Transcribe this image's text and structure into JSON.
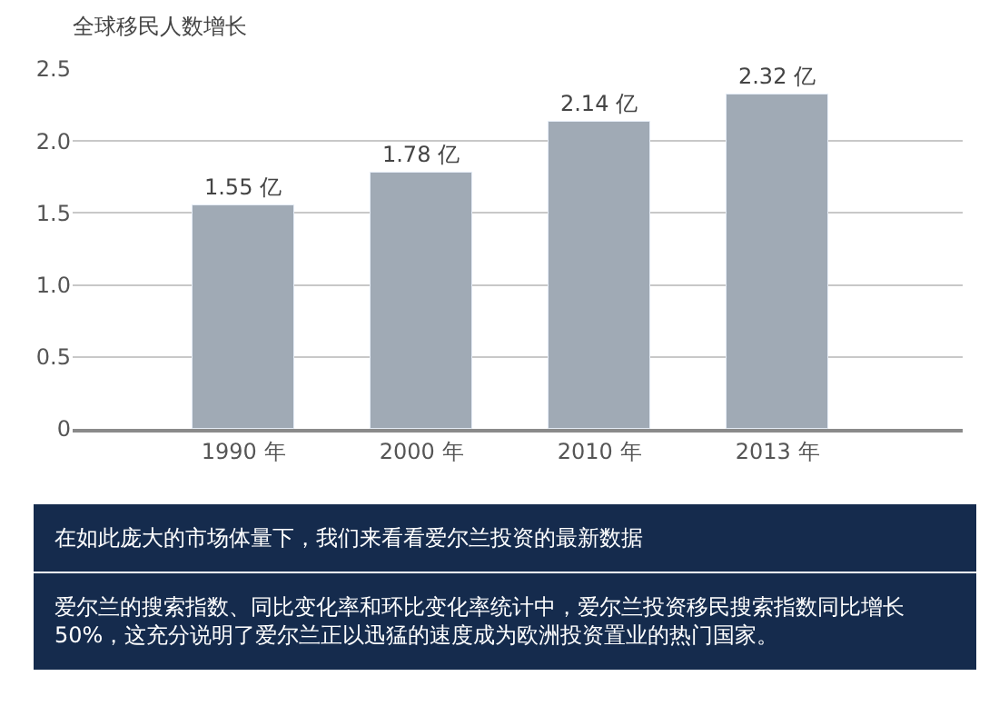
{
  "chart_data": {
    "type": "bar",
    "title": "全球移民人数增长",
    "categories": [
      "1990 年",
      "2000 年",
      "2010 年",
      "2013 年"
    ],
    "values": [
      1.55,
      1.78,
      2.14,
      2.32
    ],
    "color": "#a0aab5",
    "value_labels": [
      "1.55 亿",
      "1.78 亿",
      "2.14 亿",
      "2.32 亿"
    ],
    "ylim": [
      0,
      2.5
    ],
    "yticks": [
      0,
      0.5,
      {
        "value": 1,
        "label": "1.0"
      },
      1.5,
      {
        "value": 2,
        "label": "2.0"
      },
      2.5
    ],
    "grid": "y",
    "annotations": [
      "在如此庞大的市场体量下，我们来看看爱尔兰投资的最新数据",
      "爱尔兰的搜索指数、同比变化率和环比变化率统计中，爱尔兰投资移民搜索指数同比增长50%，这充分说明了爱尔兰正以迅猛的速度成为欧洲投资置业的热门国家。"
    ]
  }
}
